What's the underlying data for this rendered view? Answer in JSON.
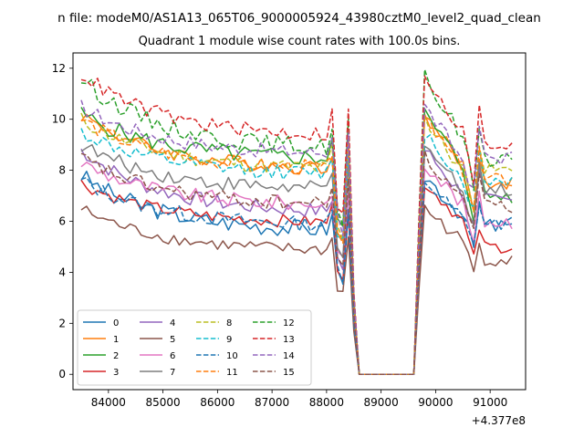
{
  "figure": {
    "suptitle": "n file: modeM0/AS1A13_065T06_9000005924_43980cztM0_level2_quad_clean"
  },
  "chart_data": {
    "type": "line",
    "title": "Quadrant 1 module wise count rates with 100.0s bins.",
    "xlabel": "",
    "ylabel": "",
    "x_offset_label": "+4.377e8",
    "xlim": [
      83350,
      91650
    ],
    "ylim": [
      -0.6,
      12.6
    ],
    "x_ticks": [
      84000,
      85000,
      86000,
      87000,
      88000,
      89000,
      90000,
      91000
    ],
    "x_tick_labels": [
      "84000",
      "85000",
      "86000",
      "87000",
      "88000",
      "89000",
      "90000",
      "91000"
    ],
    "y_ticks": [
      0,
      2,
      4,
      6,
      8,
      10,
      12
    ],
    "y_tick_labels": [
      "0",
      "2",
      "4",
      "6",
      "8",
      "10",
      "12"
    ],
    "grid": false,
    "legend_position": "lower-left",
    "legend_columns": 4,
    "bin_seconds": 100,
    "x_start": 83500,
    "x_end": 91450,
    "series": [
      {
        "name": "0",
        "color": "#1f77b4",
        "dash": "solid",
        "a": 7.8,
        "b": 5.6,
        "c": 5.8,
        "noise": 0.35
      },
      {
        "name": "1",
        "color": "#ff7f0e",
        "dash": "solid",
        "a": 10.2,
        "b": 8.0,
        "c": 7.5,
        "noise": 0.3
      },
      {
        "name": "2",
        "color": "#2ca02c",
        "dash": "solid",
        "a": 10.2,
        "b": 8.4,
        "c": 7.0,
        "noise": 0.35
      },
      {
        "name": "3",
        "color": "#d62728",
        "dash": "solid",
        "a": 7.5,
        "b": 5.9,
        "c": 5.0,
        "noise": 0.25
      },
      {
        "name": "4",
        "color": "#9467bd",
        "dash": "solid",
        "a": 8.8,
        "b": 6.3,
        "c": 6.8,
        "noise": 0.3
      },
      {
        "name": "5",
        "color": "#8c564b",
        "dash": "solid",
        "a": 6.5,
        "b": 4.8,
        "c": 4.5,
        "noise": 0.25
      },
      {
        "name": "6",
        "color": "#e377c2",
        "dash": "solid",
        "a": 8.3,
        "b": 6.6,
        "c": 6.0,
        "noise": 0.3
      },
      {
        "name": "7",
        "color": "#7f7f7f",
        "dash": "solid",
        "a": 9.0,
        "b": 7.2,
        "c": 7.2,
        "noise": 0.3
      },
      {
        "name": "8",
        "color": "#bcbd22",
        "dash": "dashed",
        "a": 10.0,
        "b": 8.0,
        "c": 8.0,
        "noise": 0.3
      },
      {
        "name": "9",
        "color": "#17becf",
        "dash": "dashed",
        "a": 9.5,
        "b": 7.8,
        "c": 7.6,
        "noise": 0.3
      },
      {
        "name": "10",
        "color": "#1f77b4",
        "dash": "dashed",
        "a": 7.6,
        "b": 5.8,
        "c": 5.9,
        "noise": 0.3
      },
      {
        "name": "11",
        "color": "#ff7f0e",
        "dash": "dashed",
        "a": 10.0,
        "b": 8.0,
        "c": 7.6,
        "noise": 0.3
      },
      {
        "name": "12",
        "color": "#2ca02c",
        "dash": "dashed",
        "a": 11.6,
        "b": 8.8,
        "c": 8.5,
        "noise": 0.35
      },
      {
        "name": "13",
        "color": "#d62728",
        "dash": "dashed",
        "a": 11.8,
        "b": 9.3,
        "c": 9.0,
        "noise": 0.3
      },
      {
        "name": "14",
        "color": "#9467bd",
        "dash": "dashed",
        "a": 10.5,
        "b": 8.6,
        "c": 8.5,
        "noise": 0.3
      },
      {
        "name": "15",
        "color": "#8c564b",
        "dash": "dashed",
        "a": 8.5,
        "b": 6.6,
        "c": 6.6,
        "noise": 0.3
      }
    ]
  }
}
